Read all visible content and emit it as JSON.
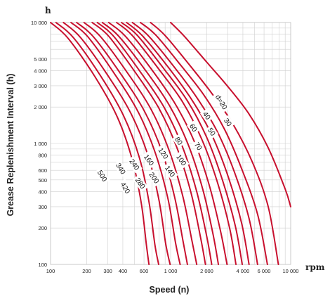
{
  "chart_data": {
    "type": "line",
    "x_scale": "log",
    "y_scale": "log",
    "xlim": [
      100,
      10000
    ],
    "ylim": [
      100,
      10000
    ],
    "grid": true,
    "y_unit": "h",
    "x_unit": "rpm",
    "ylabel": "Grease Replenishment Interval (h)",
    "xlabel": "Speed (n)",
    "x_ticks": [
      {
        "v": 100,
        "label": "100"
      },
      {
        "v": 200,
        "label": "200"
      },
      {
        "v": 300,
        "label": "300"
      },
      {
        "v": 400,
        "label": "400"
      },
      {
        "v": 600,
        "label": "600"
      },
      {
        "v": 1000,
        "label": "1 000"
      },
      {
        "v": 2000,
        "label": "2 000"
      },
      {
        "v": 4000,
        "label": "4 000"
      },
      {
        "v": 6000,
        "label": "6 000"
      },
      {
        "v": 10000,
        "label": "10 000"
      }
    ],
    "y_ticks": [
      {
        "v": 100,
        "label": "100"
      },
      {
        "v": 200,
        "label": "200"
      },
      {
        "v": 300,
        "label": "300"
      },
      {
        "v": 400,
        "label": "400"
      },
      {
        "v": 500,
        "label": "500"
      },
      {
        "v": 600,
        "label": "600"
      },
      {
        "v": 800,
        "label": "800"
      },
      {
        "v": 1000,
        "label": "1 000"
      },
      {
        "v": 2000,
        "label": "2 000"
      },
      {
        "v": 3000,
        "label": "3 000"
      },
      {
        "v": 4000,
        "label": "4 000"
      },
      {
        "v": 5000,
        "label": "5 000"
      },
      {
        "v": 10000,
        "label": "10 000"
      }
    ],
    "series": [
      {
        "name": "d=20",
        "x": [
          1000,
          1300,
          2000,
          3000,
          4500,
          6500,
          9000,
          10000
        ],
        "y": [
          10000,
          7700,
          4700,
          2950,
          1750,
          920,
          420,
          300
        ]
      },
      {
        "name": "30",
        "x": [
          680,
          900,
          1400,
          2200,
          3300,
          4800,
          6500,
          7900
        ],
        "y": [
          10000,
          7800,
          4600,
          2600,
          1450,
          700,
          300,
          100
        ]
      },
      {
        "name": "40",
        "x": [
          560,
          750,
          1200,
          1900,
          2800,
          3900,
          5300,
          6400
        ],
        "y": [
          10000,
          7900,
          4500,
          2500,
          1320,
          620,
          260,
          100
        ]
      },
      {
        "name": "50",
        "x": [
          480,
          650,
          1050,
          1650,
          2450,
          3400,
          4500,
          5300
        ],
        "y": [
          10000,
          7800,
          4400,
          2400,
          1250,
          580,
          240,
          100
        ]
      },
      {
        "name": "60",
        "x": [
          430,
          580,
          950,
          1500,
          2200,
          3000,
          3900,
          4500
        ],
        "y": [
          10000,
          7800,
          4300,
          2300,
          1180,
          540,
          220,
          100
        ]
      },
      {
        "name": "70",
        "x": [
          390,
          530,
          870,
          1380,
          2000,
          2700,
          3450,
          3950
        ],
        "y": [
          10000,
          7800,
          4200,
          2250,
          1120,
          500,
          210,
          100
        ]
      },
      {
        "name": "80",
        "x": [
          355,
          480,
          800,
          1260,
          1820,
          2450,
          3100,
          3500
        ],
        "y": [
          10000,
          7800,
          4100,
          2200,
          1080,
          480,
          200,
          100
        ]
      },
      {
        "name": "100",
        "x": [
          305,
          420,
          700,
          1100,
          1580,
          2100,
          2600,
          2950
        ],
        "y": [
          10000,
          7700,
          4050,
          2100,
          1030,
          450,
          190,
          100
        ]
      },
      {
        "name": "120",
        "x": [
          270,
          370,
          620,
          980,
          1400,
          1850,
          2250,
          2500
        ],
        "y": [
          10000,
          7700,
          4000,
          2050,
          980,
          420,
          180,
          100
        ]
      },
      {
        "name": "140",
        "x": [
          245,
          335,
          560,
          880,
          1250,
          1650,
          2000,
          2200
        ],
        "y": [
          10000,
          7700,
          3900,
          2000,
          950,
          400,
          170,
          100
        ]
      },
      {
        "name": "160",
        "x": [
          222,
          305,
          510,
          800,
          1130,
          1480,
          1780,
          1950
        ],
        "y": [
          10000,
          7700,
          3850,
          1950,
          920,
          390,
          165,
          100
        ]
      },
      {
        "name": "200",
        "x": [
          190,
          262,
          440,
          690,
          970,
          1260,
          1500,
          1650
        ],
        "y": [
          10000,
          7600,
          3800,
          1900,
          880,
          370,
          160,
          100
        ]
      },
      {
        "name": "240",
        "x": [
          165,
          228,
          385,
          605,
          850,
          1080,
          1270,
          1380
        ],
        "y": [
          10000,
          7600,
          3750,
          1850,
          850,
          360,
          155,
          100
        ]
      },
      {
        "name": "280",
        "x": [
          148,
          205,
          345,
          540,
          750,
          950,
          1100,
          1200
        ],
        "y": [
          10000,
          7600,
          3700,
          1800,
          820,
          350,
          150,
          100
        ]
      },
      {
        "name": "340",
        "x": [
          128,
          178,
          300,
          470,
          650,
          800,
          910,
          990
        ],
        "y": [
          10000,
          7500,
          3650,
          1750,
          790,
          340,
          148,
          100
        ]
      },
      {
        "name": "420",
        "x": [
          111,
          155,
          262,
          405,
          550,
          660,
          740,
          795
        ],
        "y": [
          10000,
          7500,
          3600,
          1700,
          760,
          330,
          145,
          100
        ]
      },
      {
        "name": "500",
        "x": [
          100,
          140,
          235,
          360,
          480,
          570,
          630,
          660
        ],
        "y": [
          10000,
          7400,
          3550,
          1650,
          730,
          320,
          142,
          100
        ]
      }
    ],
    "curve_labels": [
      {
        "text": "d=20",
        "x": 2650,
        "y": 2200,
        "rot": 58
      },
      {
        "text": "30",
        "x": 3000,
        "y": 1500,
        "rot": 55
      },
      {
        "text": "40",
        "x": 2000,
        "y": 1700,
        "rot": 55
      },
      {
        "text": "50",
        "x": 2200,
        "y": 1250,
        "rot": 55
      },
      {
        "text": "60",
        "x": 1550,
        "y": 1350,
        "rot": 55
      },
      {
        "text": "70",
        "x": 1700,
        "y": 950,
        "rot": 55
      },
      {
        "text": "80",
        "x": 1170,
        "y": 1050,
        "rot": 55
      },
      {
        "text": "100",
        "x": 1230,
        "y": 730,
        "rot": 55
      },
      {
        "text": "120",
        "x": 870,
        "y": 830,
        "rot": 55
      },
      {
        "text": "140",
        "x": 990,
        "y": 590,
        "rot": 55
      },
      {
        "text": "160",
        "x": 660,
        "y": 730,
        "rot": 55
      },
      {
        "text": "200",
        "x": 730,
        "y": 520,
        "rot": 55
      },
      {
        "text": "240",
        "x": 500,
        "y": 670,
        "rot": 55
      },
      {
        "text": "280",
        "x": 560,
        "y": 470,
        "rot": 55
      },
      {
        "text": "340",
        "x": 385,
        "y": 620,
        "rot": 58
      },
      {
        "text": "420",
        "x": 420,
        "y": 430,
        "rot": 60
      },
      {
        "text": "500",
        "x": 270,
        "y": 540,
        "rot": 58
      }
    ]
  }
}
